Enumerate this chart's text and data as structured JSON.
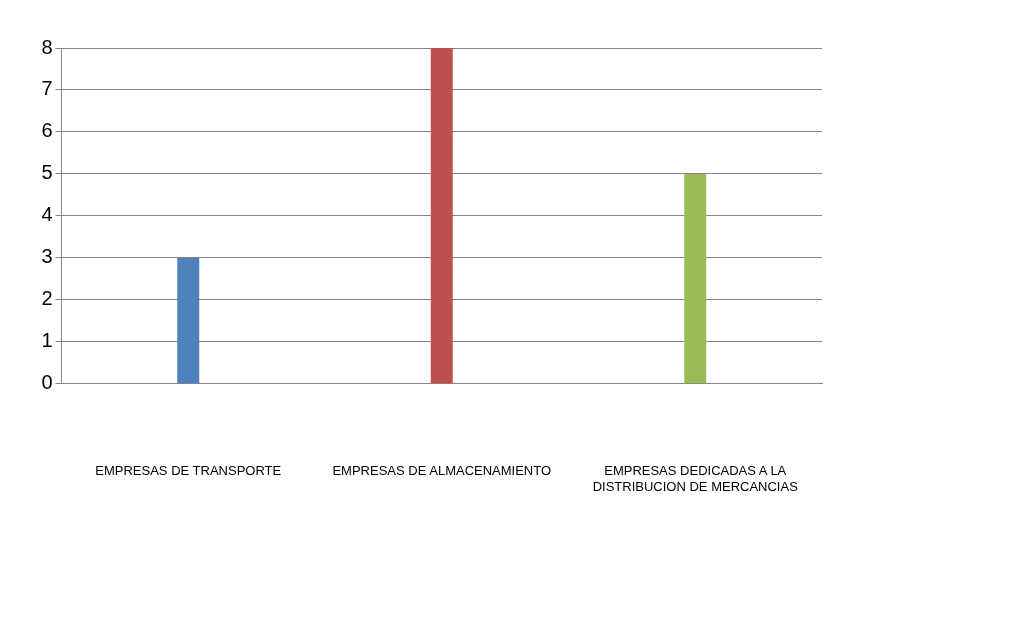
{
  "chart_data": {
    "type": "bar",
    "categories": [
      "EMPRESAS DE TRANSPORTE",
      "EMPRESAS DE ALMACENAMIENTO",
      "EMPRESAS DEDICADAS A LA DISTRIBUCION DE MERCANCIAS"
    ],
    "values": [
      3,
      8,
      5
    ],
    "colors": [
      "#4f81bd",
      "#c0504d",
      "#9bbb59"
    ],
    "ylim": [
      0,
      8
    ],
    "yticks": [
      0,
      1,
      2,
      3,
      4,
      5,
      6,
      7,
      8
    ],
    "grid": "y"
  }
}
